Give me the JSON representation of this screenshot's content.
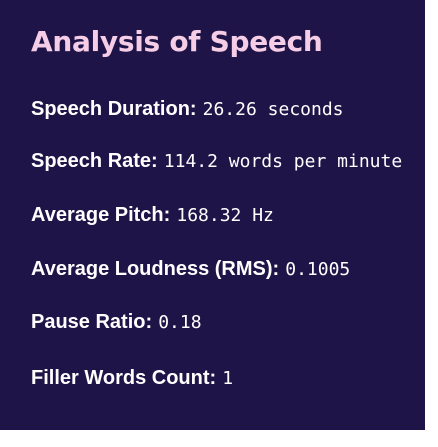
{
  "title": "Analysis of Speech",
  "metrics": [
    {
      "label": "Speech Duration:",
      "value": "26.26 seconds"
    },
    {
      "label": "Speech Rate:",
      "value": "114.2 words per minute"
    },
    {
      "label": "Average Pitch:",
      "value": "168.32 Hz"
    },
    {
      "label": "Average Loudness (RMS):",
      "value": "0.1005"
    },
    {
      "label": "Pause Ratio:",
      "value": "0.18"
    },
    {
      "label": "Filler Words Count:",
      "value": "1"
    }
  ],
  "colors": {
    "background": "#1f1448",
    "title": "#f6cde6",
    "text": "#ffffff"
  }
}
